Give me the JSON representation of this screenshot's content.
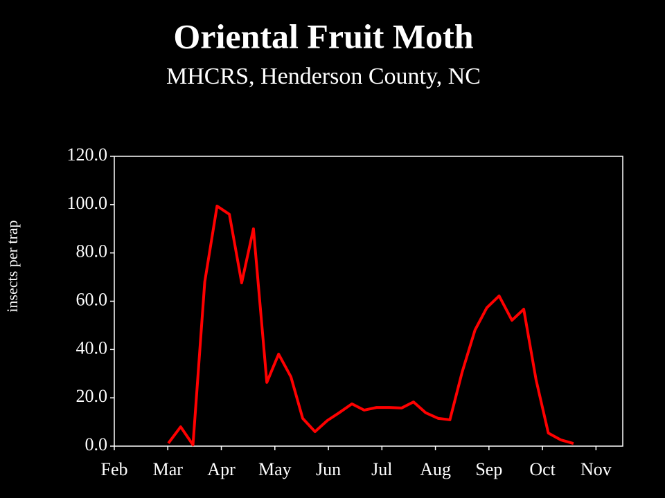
{
  "chart_data": {
    "type": "line",
    "title": "Oriental Fruit Moth",
    "subtitle": "MHCRS, Henderson County, NC",
    "y_label": "insects per trap",
    "x": [
      1.01,
      1.24,
      1.47,
      1.69,
      1.92,
      2.15,
      2.38,
      2.6,
      2.85,
      3.07,
      3.3,
      3.52,
      3.75,
      3.98,
      4.2,
      4.44,
      4.67,
      4.9,
      5.14,
      5.37,
      5.59,
      5.82,
      6.05,
      6.27,
      6.5,
      6.74,
      6.96,
      7.19,
      7.43,
      7.65,
      7.88,
      8.11,
      8.34,
      8.58
    ],
    "series": [
      {
        "color": "#ff0000",
        "values": [
          1.2,
          8.0,
          0.5,
          68,
          99.4,
          96,
          67.6,
          90,
          26.4,
          38.1,
          28.7,
          11.5,
          6.0,
          10.6,
          13.8,
          17.5,
          14.9,
          16.0,
          16.0,
          15.8,
          18.3,
          13.8,
          11.5,
          10.9,
          30.7,
          48.1,
          57.3,
          62.2,
          52.1,
          56.7,
          27.5,
          5.4,
          2.6,
          1.1
        ]
      }
    ],
    "xlim": [
      0,
      9.5
    ],
    "xticks": [
      {
        "value": 0,
        "label": "Feb"
      },
      {
        "value": 1,
        "label": "Mar"
      },
      {
        "value": 2,
        "label": "Apr"
      },
      {
        "value": 3,
        "label": "May"
      },
      {
        "value": 4,
        "label": "Jun"
      },
      {
        "value": 5,
        "label": "Jul"
      },
      {
        "value": 6,
        "label": "Aug"
      },
      {
        "value": 7,
        "label": "Sep"
      },
      {
        "value": 8,
        "label": "Oct"
      },
      {
        "value": 9,
        "label": "Nov"
      }
    ],
    "ylim": [
      0,
      120
    ],
    "yticks": [
      {
        "value": 0,
        "label": "0.0"
      },
      {
        "value": 20,
        "label": "20.0"
      },
      {
        "value": 40,
        "label": "40.0"
      },
      {
        "value": 60,
        "label": "60.0"
      },
      {
        "value": 80,
        "label": "80.0"
      },
      {
        "value": 100,
        "label": "100.0"
      },
      {
        "value": 120,
        "label": "120.0"
      }
    ]
  }
}
